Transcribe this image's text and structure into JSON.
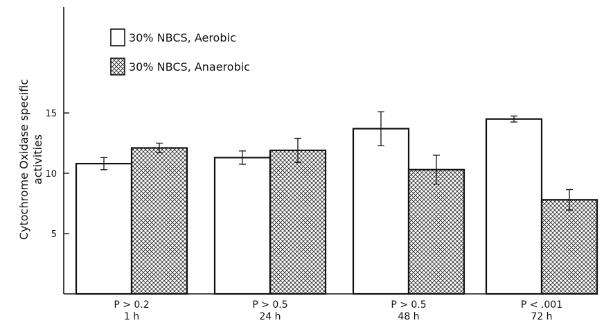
{
  "chart_data": {
    "type": "bar",
    "title": "",
    "xlabel": "",
    "ylabel_lines": [
      "Cytochrome Oxidase specific",
      "activities"
    ],
    "ylim": [
      0,
      20
    ],
    "yticks": [
      5,
      10,
      15
    ],
    "legend_position": "top-left",
    "grid": false,
    "categories": [
      {
        "p": "P > 0.2",
        "time": "1 h"
      },
      {
        "p": "P > 0.5",
        "time": "24 h"
      },
      {
        "p": "P > 0.5",
        "time": "48 h"
      },
      {
        "p": "P < .001",
        "time": "72 h"
      }
    ],
    "series": [
      {
        "name": "30% NBCS, Aerobic",
        "fill": "plain",
        "values": [
          10.8,
          11.3,
          13.7,
          14.5
        ],
        "errors": [
          0.5,
          0.55,
          1.4,
          0.25
        ]
      },
      {
        "name": "30% NBCS, Anaerobic",
        "fill": "crosshatch",
        "values": [
          12.1,
          11.9,
          10.3,
          7.8
        ],
        "errors": [
          0.4,
          1.0,
          1.2,
          0.85
        ]
      }
    ]
  }
}
